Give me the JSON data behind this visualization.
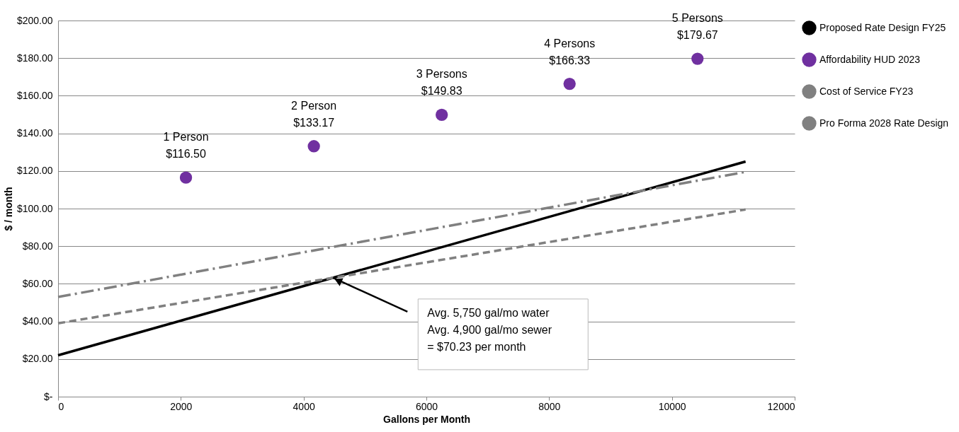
{
  "chart_data": {
    "type": "line",
    "xlabel": "Gallons per Month",
    "ylabel": "$ / month",
    "xlim": [
      0,
      12000
    ],
    "xticks": [
      0,
      2000,
      4000,
      6000,
      8000,
      10000,
      12000
    ],
    "ylim": [
      0,
      200
    ],
    "yticks": [
      {
        "value": 0,
        "label": "$-"
      },
      {
        "value": 20,
        "label": "$20.00"
      },
      {
        "value": 40,
        "label": "$40.00"
      },
      {
        "value": 60,
        "label": "$60.00"
      },
      {
        "value": 80,
        "label": "$80.00"
      },
      {
        "value": 100,
        "label": "$100.00"
      },
      {
        "value": 120,
        "label": "$120.00"
      },
      {
        "value": 140,
        "label": "$140.00"
      },
      {
        "value": 160,
        "label": "$160.00"
      },
      {
        "value": 180,
        "label": "$180.00"
      },
      {
        "value": 200,
        "label": "$200.00"
      }
    ],
    "grid": "y",
    "legend": "right",
    "series": [
      {
        "name": "Proposed Rate Design FY25",
        "color": "#000000",
        "line_style": "solid",
        "x": [
          0,
          11200
        ],
        "values": [
          22,
          125
        ]
      },
      {
        "name": "Affordability HUD 2023",
        "type": "scatter",
        "marker": "circle",
        "color": "#7030a0",
        "x": [
          2083,
          4167,
          6250,
          8333,
          10417
        ],
        "values": [
          116.5,
          133.17,
          149.83,
          166.33,
          179.67
        ],
        "value_labels": [
          "$116.50",
          "$133.17",
          "$149.83",
          "$166.33",
          "$179.67"
        ]
      },
      {
        "name": "Cost of Service FY23",
        "color": "#808080",
        "line_style": "dashed",
        "x": [
          0,
          11200
        ],
        "values": [
          39,
          99.5
        ]
      },
      {
        "name": "Pro Forma 2028 Rate Design",
        "color": "#808080",
        "line_style": "dashdot",
        "x": [
          0,
          11200
        ],
        "values": [
          53,
          119.5
        ]
      }
    ],
    "annotations": [
      "1 Person",
      "2 Person",
      "3 Persons",
      "4 Persons",
      "5 Persons",
      "Avg. 5,750 gal/mo water\nAvg. 4,900 gal/mo sewer\n= $70.23 per month"
    ]
  }
}
